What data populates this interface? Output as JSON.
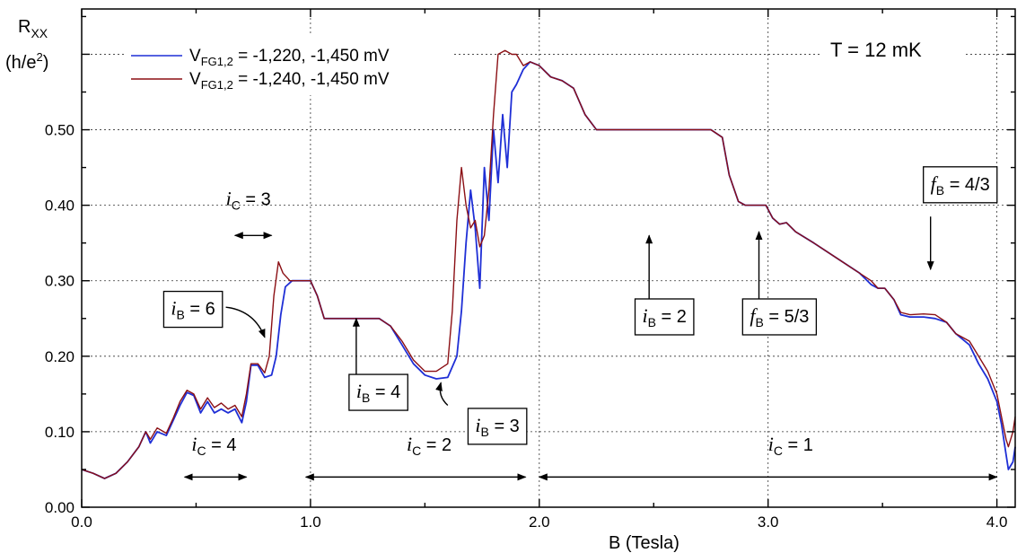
{
  "chart_data": {
    "type": "line",
    "title": "",
    "xlabel": "B  (Tesla)",
    "ylabel_line1": "R",
    "ylabel_sub": "XX",
    "ylabel_line2": "(h/e",
    "ylabel_sup": "2",
    "ylabel_close": ")",
    "xlim": [
      0.0,
      4.08
    ],
    "ylim": [
      0.0,
      0.66
    ],
    "grid": true,
    "x_ticks": [
      {
        "value": 0.0,
        "label": "0.0"
      },
      {
        "value": 1.0,
        "label": "1.0"
      },
      {
        "value": 2.0,
        "label": "2.0"
      },
      {
        "value": 3.0,
        "label": "3.0"
      },
      {
        "value": 4.0,
        "label": "4.0"
      }
    ],
    "y_ticks": [
      {
        "value": 0.0,
        "label": "0.00"
      },
      {
        "value": 0.1,
        "label": "0.10"
      },
      {
        "value": 0.2,
        "label": "0.20"
      },
      {
        "value": 0.3,
        "label": "0.30"
      },
      {
        "value": 0.4,
        "label": "0.40"
      },
      {
        "value": 0.5,
        "label": "0.50"
      }
    ],
    "temperature_label": "T = 12 mK",
    "legend_position": "top-left",
    "series": [
      {
        "name_main": "V",
        "name_sub": "FG1,2",
        "name_rest": " = -1,220, -1,450 mV",
        "color": "#1f2fd6",
        "points": [
          [
            0.0,
            0.05
          ],
          [
            0.05,
            0.045
          ],
          [
            0.1,
            0.038
          ],
          [
            0.15,
            0.045
          ],
          [
            0.2,
            0.06
          ],
          [
            0.25,
            0.08
          ],
          [
            0.28,
            0.1
          ],
          [
            0.3,
            0.085
          ],
          [
            0.33,
            0.1
          ],
          [
            0.37,
            0.095
          ],
          [
            0.4,
            0.115
          ],
          [
            0.43,
            0.135
          ],
          [
            0.46,
            0.152
          ],
          [
            0.49,
            0.148
          ],
          [
            0.52,
            0.125
          ],
          [
            0.55,
            0.14
          ],
          [
            0.58,
            0.125
          ],
          [
            0.61,
            0.13
          ],
          [
            0.64,
            0.125
          ],
          [
            0.67,
            0.13
          ],
          [
            0.7,
            0.112
          ],
          [
            0.72,
            0.14
          ],
          [
            0.74,
            0.188
          ],
          [
            0.77,
            0.188
          ],
          [
            0.8,
            0.172
          ],
          [
            0.83,
            0.175
          ],
          [
            0.85,
            0.2
          ],
          [
            0.87,
            0.255
          ],
          [
            0.89,
            0.292
          ],
          [
            0.92,
            0.3
          ],
          [
            0.95,
            0.3
          ],
          [
            1.0,
            0.3
          ],
          [
            1.03,
            0.28
          ],
          [
            1.06,
            0.25
          ],
          [
            1.1,
            0.25
          ],
          [
            1.2,
            0.25
          ],
          [
            1.3,
            0.25
          ],
          [
            1.35,
            0.24
          ],
          [
            1.4,
            0.215
          ],
          [
            1.45,
            0.19
          ],
          [
            1.5,
            0.175
          ],
          [
            1.55,
            0.17
          ],
          [
            1.6,
            0.172
          ],
          [
            1.64,
            0.2
          ],
          [
            1.66,
            0.26
          ],
          [
            1.68,
            0.35
          ],
          [
            1.7,
            0.42
          ],
          [
            1.72,
            0.37
          ],
          [
            1.74,
            0.29
          ],
          [
            1.76,
            0.45
          ],
          [
            1.78,
            0.38
          ],
          [
            1.8,
            0.5
          ],
          [
            1.82,
            0.43
          ],
          [
            1.84,
            0.52
          ],
          [
            1.86,
            0.45
          ],
          [
            1.88,
            0.55
          ],
          [
            1.9,
            0.56
          ],
          [
            1.93,
            0.58
          ],
          [
            1.96,
            0.59
          ],
          [
            2.0,
            0.585
          ],
          [
            2.05,
            0.57
          ],
          [
            2.1,
            0.565
          ],
          [
            2.15,
            0.555
          ],
          [
            2.2,
            0.52
          ],
          [
            2.25,
            0.5
          ],
          [
            2.4,
            0.5
          ],
          [
            2.6,
            0.5
          ],
          [
            2.75,
            0.5
          ],
          [
            2.8,
            0.49
          ],
          [
            2.83,
            0.44
          ],
          [
            2.87,
            0.405
          ],
          [
            2.9,
            0.4
          ],
          [
            2.95,
            0.4
          ],
          [
            2.99,
            0.4
          ],
          [
            3.02,
            0.383
          ],
          [
            3.05,
            0.375
          ],
          [
            3.08,
            0.377
          ],
          [
            3.12,
            0.365
          ],
          [
            3.2,
            0.35
          ],
          [
            3.3,
            0.33
          ],
          [
            3.4,
            0.31
          ],
          [
            3.45,
            0.295
          ],
          [
            3.48,
            0.29
          ],
          [
            3.51,
            0.29
          ],
          [
            3.55,
            0.275
          ],
          [
            3.58,
            0.255
          ],
          [
            3.62,
            0.252
          ],
          [
            3.68,
            0.252
          ],
          [
            3.73,
            0.25
          ],
          [
            3.78,
            0.245
          ],
          [
            3.82,
            0.23
          ],
          [
            3.88,
            0.215
          ],
          [
            3.92,
            0.19
          ],
          [
            3.96,
            0.17
          ],
          [
            4.0,
            0.14
          ],
          [
            4.02,
            0.11
          ],
          [
            4.04,
            0.07
          ],
          [
            4.05,
            0.05
          ],
          [
            4.07,
            0.06
          ],
          [
            4.08,
            0.08
          ]
        ]
      },
      {
        "name_main": "V",
        "name_sub": "FG1,2",
        "name_rest": " = -1,240, -1,450 mV",
        "color": "#8b0f14",
        "points": [
          [
            0.0,
            0.05
          ],
          [
            0.05,
            0.045
          ],
          [
            0.1,
            0.038
          ],
          [
            0.15,
            0.045
          ],
          [
            0.2,
            0.06
          ],
          [
            0.25,
            0.08
          ],
          [
            0.28,
            0.1
          ],
          [
            0.3,
            0.09
          ],
          [
            0.33,
            0.105
          ],
          [
            0.37,
            0.098
          ],
          [
            0.4,
            0.118
          ],
          [
            0.43,
            0.14
          ],
          [
            0.46,
            0.155
          ],
          [
            0.49,
            0.15
          ],
          [
            0.52,
            0.13
          ],
          [
            0.55,
            0.145
          ],
          [
            0.58,
            0.132
          ],
          [
            0.61,
            0.138
          ],
          [
            0.64,
            0.13
          ],
          [
            0.67,
            0.135
          ],
          [
            0.7,
            0.12
          ],
          [
            0.72,
            0.15
          ],
          [
            0.74,
            0.19
          ],
          [
            0.77,
            0.19
          ],
          [
            0.8,
            0.178
          ],
          [
            0.82,
            0.2
          ],
          [
            0.84,
            0.28
          ],
          [
            0.86,
            0.325
          ],
          [
            0.88,
            0.31
          ],
          [
            0.91,
            0.3
          ],
          [
            0.95,
            0.3
          ],
          [
            1.0,
            0.3
          ],
          [
            1.03,
            0.28
          ],
          [
            1.06,
            0.25
          ],
          [
            1.1,
            0.25
          ],
          [
            1.2,
            0.25
          ],
          [
            1.3,
            0.25
          ],
          [
            1.35,
            0.24
          ],
          [
            1.4,
            0.22
          ],
          [
            1.45,
            0.195
          ],
          [
            1.5,
            0.18
          ],
          [
            1.55,
            0.18
          ],
          [
            1.6,
            0.19
          ],
          [
            1.62,
            0.26
          ],
          [
            1.64,
            0.38
          ],
          [
            1.66,
            0.45
          ],
          [
            1.68,
            0.4
          ],
          [
            1.7,
            0.37
          ],
          [
            1.72,
            0.38
          ],
          [
            1.74,
            0.345
          ],
          [
            1.76,
            0.36
          ],
          [
            1.78,
            0.42
          ],
          [
            1.8,
            0.52
          ],
          [
            1.82,
            0.6
          ],
          [
            1.85,
            0.605
          ],
          [
            1.88,
            0.6
          ],
          [
            1.9,
            0.6
          ],
          [
            1.93,
            0.585
          ],
          [
            1.96,
            0.59
          ],
          [
            2.0,
            0.585
          ],
          [
            2.05,
            0.57
          ],
          [
            2.1,
            0.565
          ],
          [
            2.15,
            0.555
          ],
          [
            2.2,
            0.52
          ],
          [
            2.25,
            0.5
          ],
          [
            2.4,
            0.5
          ],
          [
            2.6,
            0.5
          ],
          [
            2.75,
            0.5
          ],
          [
            2.8,
            0.49
          ],
          [
            2.83,
            0.44
          ],
          [
            2.87,
            0.405
          ],
          [
            2.9,
            0.4
          ],
          [
            2.95,
            0.4
          ],
          [
            2.99,
            0.4
          ],
          [
            3.02,
            0.383
          ],
          [
            3.05,
            0.375
          ],
          [
            3.08,
            0.377
          ],
          [
            3.12,
            0.365
          ],
          [
            3.2,
            0.35
          ],
          [
            3.3,
            0.33
          ],
          [
            3.4,
            0.31
          ],
          [
            3.45,
            0.3
          ],
          [
            3.48,
            0.29
          ],
          [
            3.51,
            0.29
          ],
          [
            3.55,
            0.275
          ],
          [
            3.58,
            0.258
          ],
          [
            3.62,
            0.255
          ],
          [
            3.68,
            0.256
          ],
          [
            3.73,
            0.255
          ],
          [
            3.78,
            0.245
          ],
          [
            3.82,
            0.23
          ],
          [
            3.88,
            0.22
          ],
          [
            3.92,
            0.2
          ],
          [
            3.96,
            0.18
          ],
          [
            4.0,
            0.15
          ],
          [
            4.02,
            0.12
          ],
          [
            4.04,
            0.09
          ],
          [
            4.05,
            0.08
          ],
          [
            4.07,
            0.1
          ],
          [
            4.08,
            0.12
          ]
        ]
      }
    ],
    "annotations": [
      {
        "id": "ic3",
        "italic": "i",
        "sub": "C",
        "rest": " = 3",
        "text_at": [
          0.63,
          0.4
        ],
        "boxed": false,
        "arrow": {
          "type": "double",
          "from": [
            0.67,
            0.36
          ],
          "to": [
            0.83,
            0.36
          ]
        }
      },
      {
        "id": "ib6",
        "italic": "i",
        "sub": "B",
        "rest": " = 6",
        "text_at": [
          0.39,
          0.255
        ],
        "boxed": true,
        "arrow": {
          "type": "curve",
          "from": [
            0.63,
            0.265
          ],
          "to": [
            0.8,
            0.225
          ]
        }
      },
      {
        "id": "ib4",
        "italic": "i",
        "sub": "B",
        "rest": " = 4",
        "text_at": [
          1.2,
          0.145
        ],
        "boxed": true,
        "arrow": {
          "type": "up",
          "from": [
            1.2,
            0.165
          ],
          "to": [
            1.2,
            0.25
          ]
        }
      },
      {
        "id": "ib3",
        "italic": "i",
        "sub": "B",
        "rest": " = 3",
        "text_at": [
          1.72,
          0.1
        ],
        "boxed": true,
        "arrow": {
          "type": "curve",
          "from": [
            1.6,
            0.135
          ],
          "to": [
            1.57,
            0.165
          ]
        }
      },
      {
        "id": "ib2",
        "italic": "i",
        "sub": "B",
        "rest": " = 2",
        "text_at": [
          2.45,
          0.245
        ],
        "boxed": true,
        "arrow": {
          "type": "up",
          "from": [
            2.48,
            0.265
          ],
          "to": [
            2.48,
            0.36
          ]
        }
      },
      {
        "id": "fb53",
        "italic": "f",
        "sub": "B",
        "rest": " = 5/3",
        "text_at": [
          2.92,
          0.245
        ],
        "boxed": true,
        "arrow": {
          "type": "up",
          "from": [
            2.96,
            0.265
          ],
          "to": [
            2.96,
            0.365
          ]
        }
      },
      {
        "id": "fb43",
        "italic": "f",
        "sub": "B",
        "rest": " = 4/3",
        "text_at": [
          3.71,
          0.42
        ],
        "boxed": true,
        "arrow": {
          "type": "down",
          "from": [
            3.71,
            0.385
          ],
          "to": [
            3.71,
            0.315
          ]
        }
      },
      {
        "id": "ic4",
        "italic": "i",
        "sub": "C",
        "rest": " = 4",
        "text_at": [
          0.48,
          0.075
        ],
        "boxed": false,
        "arrow": {
          "type": "double",
          "from": [
            0.45,
            0.04
          ],
          "to": [
            0.72,
            0.04
          ]
        }
      },
      {
        "id": "ic2",
        "italic": "i",
        "sub": "C",
        "rest": " = 2",
        "text_at": [
          1.42,
          0.075
        ],
        "boxed": false,
        "arrow": {
          "type": "double",
          "from": [
            0.98,
            0.04
          ],
          "to": [
            1.94,
            0.04
          ]
        }
      },
      {
        "id": "ic1",
        "italic": "i",
        "sub": "C",
        "rest": " = 1",
        "text_at": [
          3.0,
          0.075
        ],
        "boxed": false,
        "arrow": {
          "type": "double",
          "from": [
            2.0,
            0.04
          ],
          "to": [
            4.0,
            0.04
          ]
        }
      }
    ]
  }
}
